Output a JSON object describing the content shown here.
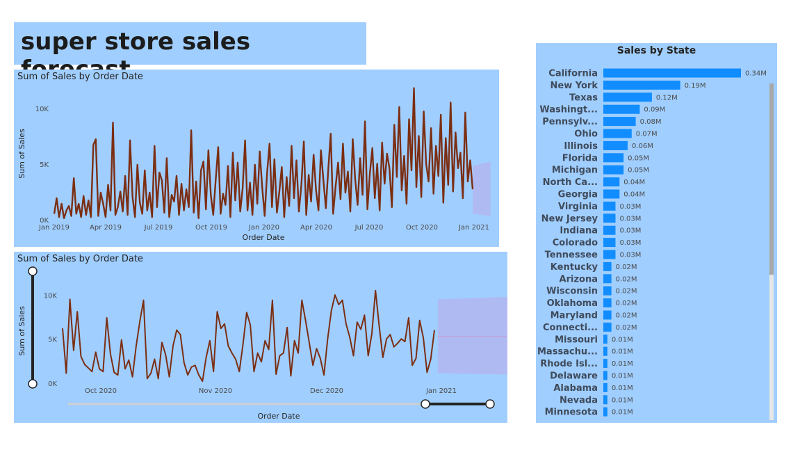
{
  "report": {
    "title": "super store sales forecast"
  },
  "colors": {
    "panel_bg": "#a0ceff",
    "line": "#7b2e12",
    "forecast_band": "#b3b6f0",
    "bar": "#118dff"
  },
  "chart_data": [
    {
      "type": "line",
      "title": "Sum of Sales by Order Date",
      "xlabel": "Order Date",
      "ylabel": "Sum of Sales",
      "x_ticks": [
        "Jan 2019",
        "Apr 2019",
        "Jul 2019",
        "Oct 2019",
        "Jan 2020",
        "Apr 2020",
        "Jul 2020",
        "Oct 2020",
        "Jan 2021"
      ],
      "y_ticks": [
        "0K",
        "5K",
        "10K"
      ],
      "ylim": [
        0,
        12000
      ],
      "x_start": "2019-01-03",
      "x_end": "2020-12-30",
      "forecast": {
        "start": "2020-12-30",
        "end": "2021-01-30",
        "low": 600,
        "high": 4900
      },
      "series": [
        {
          "values": [
            600,
            2000,
            300,
            1500,
            200,
            900,
            1300,
            400,
            3800,
            600,
            1500,
            300,
            2200,
            500,
            1800,
            300,
            6800,
            7300,
            400,
            2500,
            1500,
            300,
            3200,
            900,
            8800,
            500,
            1200,
            2600,
            800,
            4000,
            500,
            7200,
            2100,
            300,
            5000,
            1600,
            600,
            4500,
            900,
            2500,
            300,
            6700,
            1200,
            4300,
            3600,
            700,
            5600,
            300,
            2300,
            1700,
            4000,
            500,
            3300,
            900,
            2800,
            1200,
            8100,
            700,
            3500,
            200,
            4500,
            5300,
            1000,
            6300,
            2300,
            500,
            3700,
            6600,
            600,
            2400,
            1400,
            4900,
            300,
            6100,
            1800,
            5200,
            800,
            2900,
            7200,
            900,
            3400,
            500,
            5000,
            1500,
            6200,
            3000,
            400,
            4300,
            6900,
            1200,
            5500,
            700,
            2600,
            4800,
            300,
            3900,
            1300,
            6700,
            2000,
            5400,
            800,
            3200,
            7100,
            500,
            4100,
            1700,
            5900,
            2700,
            900,
            6300,
            3600,
            1100,
            4600,
            7800,
            600,
            3100,
            5200,
            1900,
            6900,
            2500,
            4400,
            800,
            7300,
            3700,
            1400,
            5600,
            2300,
            8900,
            1000,
            4200,
            6500,
            2000,
            5100,
            900,
            7000,
            3300,
            6000,
            4700,
            1200,
            8600,
            3900,
            10200,
            2700,
            5800,
            1500,
            9100,
            4500,
            11900,
            3000,
            7600,
            2100,
            9800,
            5100,
            3500,
            8300,
            2400,
            6700,
            4000,
            9500,
            1600,
            7400,
            3200,
            10600,
            2600,
            7900,
            4700,
            6100,
            2000,
            9700,
            3500,
            5400,
            2800
          ]
        }
      ]
    },
    {
      "type": "line",
      "title": "Sum of Sales by Order Date",
      "xlabel": "Order Date",
      "ylabel": "Sum of Sales",
      "x_ticks": [
        "Oct 2020",
        "Nov 2020",
        "Dec 2020",
        "Jan 2021"
      ],
      "y_ticks": [
        "0K",
        "5K",
        "10K"
      ],
      "ylim": [
        0,
        12000
      ],
      "x_start": "2020-09-14",
      "x_end": "2020-12-31",
      "forecast": {
        "start": "2021-01-01",
        "end": "2021-01-31",
        "low": 1200,
        "high": 9600,
        "mid": 5400
      },
      "series": [
        {
          "values": [
            6300,
            1200,
            9600,
            3800,
            8200,
            3100,
            2200,
            1800,
            1400,
            3600,
            1700,
            1400,
            7500,
            3400,
            1300,
            1000,
            5000,
            1700,
            2700,
            800,
            4300,
            7100,
            9500,
            600,
            1200,
            2800,
            600,
            4700,
            3300,
            800,
            4300,
            6100,
            5600,
            2400,
            1000,
            1900,
            2100,
            1000,
            300,
            3000,
            4900,
            1400,
            8200,
            6300,
            6800,
            4300,
            3500,
            2800,
            1400,
            4500,
            8100,
            6700,
            1400,
            3500,
            2500,
            4900,
            3900,
            9500,
            1100,
            3200,
            3500,
            6400,
            900,
            4900,
            3500,
            9500,
            7200,
            4700,
            2100,
            4000,
            2900,
            1000,
            5100,
            8300,
            10100,
            9000,
            9500,
            6800,
            5300,
            3200,
            7000,
            6200,
            7800,
            3200,
            5700,
            10600,
            6600,
            3000,
            5100,
            5600,
            4200,
            4600,
            5100,
            4800,
            7500,
            2100,
            2900,
            7200,
            5200,
            1300,
            2800,
            6100
          ]
        }
      ]
    },
    {
      "type": "bar",
      "orientation": "horizontal",
      "title": "Sales by State",
      "categories": [
        "California",
        "New York",
        "Texas",
        "Washingt...",
        "Pennsylv...",
        "Ohio",
        "Illinois",
        "Florida",
        "Michigan",
        "North Ca...",
        "Georgia",
        "Virginia",
        "New Jersey",
        "Indiana",
        "Colorado",
        "Tennessee",
        "Kentucky",
        "Arizona",
        "Wisconsin",
        "Oklahoma",
        "Maryland",
        "Connecti...",
        "Missouri",
        "Massachu...",
        "Rhode Isl...",
        "Delaware",
        "Alabama",
        "Nevada",
        "Minnesota"
      ],
      "values": [
        0.34,
        0.19,
        0.12,
        0.09,
        0.08,
        0.07,
        0.06,
        0.05,
        0.05,
        0.04,
        0.04,
        0.03,
        0.03,
        0.03,
        0.03,
        0.03,
        0.02,
        0.02,
        0.02,
        0.02,
        0.02,
        0.02,
        0.01,
        0.01,
        0.01,
        0.01,
        0.01,
        0.01,
        0.01
      ],
      "value_labels": [
        "0.34M",
        "0.19M",
        "0.12M",
        "0.09M",
        "0.08M",
        "0.07M",
        "0.06M",
        "0.05M",
        "0.05M",
        "0.04M",
        "0.04M",
        "0.03M",
        "0.03M",
        "0.03M",
        "0.03M",
        "0.03M",
        "0.02M",
        "0.02M",
        "0.02M",
        "0.02M",
        "0.02M",
        "0.02M",
        "0.01M",
        "0.01M",
        "0.01M",
        "0.01M",
        "0.01M",
        "0.01M",
        "0.01M"
      ],
      "unit": "M"
    }
  ]
}
